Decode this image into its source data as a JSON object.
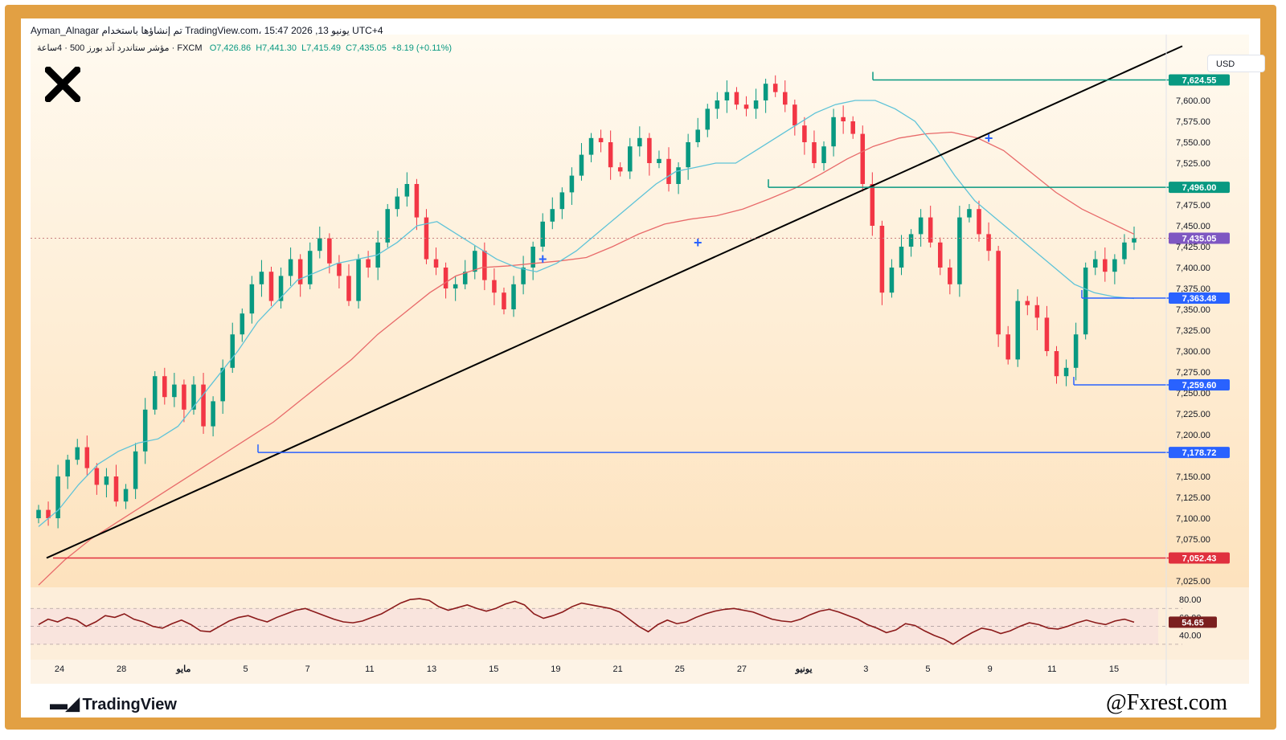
{
  "header": {
    "line1": "Ayman_Alnagar تم إنشاؤها باستخدام TradingView.com، 15:47 2026 ,13 يونيو UTC+4",
    "symbol": "مؤشر ستاندرد آند بورز 500 · 4ساعة · FXCM",
    "open": "O7,426.86",
    "high": "H7,441.30",
    "low": "L7,415.49",
    "close": "C7,435.05",
    "change": "+8.19 (+0.11%)"
  },
  "currency_label": "USD",
  "brand": {
    "tradingview": "TradingView",
    "handle": "@Fxrest.com"
  },
  "colors": {
    "frame": "#e2a043",
    "up": "#089981",
    "down": "#f23645",
    "ema_fast": "#5ec3d8",
    "ema_slow": "#e86a6a",
    "resistance": "#089981",
    "support": "#2962ff",
    "rsi": "#8b1a1a"
  },
  "chart_data": [
    {
      "type": "candlestick",
      "ylim": [
        7025,
        7650
      ],
      "y_ticks": [
        "7,600.00",
        "7,575.00",
        "7,550.00",
        "7,525.00",
        "7,475.00",
        "7,450.00",
        "7,425.00",
        "7,400.00",
        "7,375.00",
        "7,350.00",
        "7,325.00",
        "7,300.00",
        "7,275.00",
        "7,250.00",
        "7,225.00",
        "7,200.00",
        "7,150.00",
        "7,125.00",
        "7,100.00",
        "7,075.00",
        "7,025.00"
      ],
      "x_ticks": [
        "24",
        "28",
        "مايو",
        "5",
        "7",
        "11",
        "13",
        "15",
        "19",
        "21",
        "25",
        "27",
        "يونيو",
        "3",
        "5",
        "9",
        "11",
        "15"
      ],
      "close_path": [
        7110,
        7100,
        7150,
        7170,
        7185,
        7160,
        7140,
        7150,
        7120,
        7135,
        7180,
        7230,
        7270,
        7245,
        7260,
        7230,
        7260,
        7210,
        7240,
        7280,
        7320,
        7345,
        7380,
        7395,
        7360,
        7390,
        7410,
        7380,
        7420,
        7435,
        7405,
        7390,
        7360,
        7410,
        7400,
        7430,
        7470,
        7485,
        7500,
        7460,
        7410,
        7400,
        7375,
        7380,
        7395,
        7420,
        7385,
        7370,
        7350,
        7380,
        7400,
        7425,
        7455,
        7470,
        7490,
        7510,
        7535,
        7555,
        7550,
        7520,
        7515,
        7545,
        7555,
        7525,
        7530,
        7500,
        7520,
        7550,
        7565,
        7590,
        7600,
        7610,
        7595,
        7590,
        7600,
        7620,
        7610,
        7595,
        7570,
        7550,
        7525,
        7545,
        7580,
        7575,
        7560,
        7500,
        7450,
        7370,
        7400,
        7425,
        7440,
        7460,
        7430,
        7400,
        7380,
        7460,
        7470,
        7440,
        7420,
        7320,
        7290,
        7360,
        7355,
        7340,
        7300,
        7270,
        7280,
        7320,
        7400,
        7410,
        7395,
        7410,
        7430,
        7435.05
      ],
      "ema_fast_path": [
        7090,
        7110,
        7140,
        7165,
        7180,
        7190,
        7195,
        7210,
        7240,
        7270,
        7300,
        7335,
        7360,
        7385,
        7395,
        7405,
        7410,
        7415,
        7430,
        7450,
        7455,
        7440,
        7425,
        7410,
        7400,
        7395,
        7405,
        7420,
        7440,
        7460,
        7480,
        7500,
        7515,
        7520,
        7525,
        7525,
        7540,
        7555,
        7570,
        7585,
        7595,
        7600,
        7600,
        7590,
        7575,
        7545,
        7510,
        7480,
        7460,
        7440,
        7420,
        7400,
        7380,
        7370,
        7365,
        7363
      ],
      "ema_slow_path": [
        7020,
        7050,
        7075,
        7095,
        7115,
        7135,
        7155,
        7175,
        7195,
        7215,
        7240,
        7265,
        7290,
        7320,
        7345,
        7370,
        7390,
        7400,
        7402,
        7405,
        7408,
        7412,
        7425,
        7440,
        7452,
        7458,
        7462,
        7470,
        7482,
        7495,
        7512,
        7530,
        7545,
        7555,
        7560,
        7562,
        7555,
        7540,
        7515,
        7490,
        7470,
        7455,
        7440
      ],
      "series": [
        {
          "name": "",
          "note": "EMA fast"
        },
        {
          "name": "",
          "note": "EMA slow"
        }
      ],
      "levels": [
        {
          "label": "7,624.55",
          "value": 7624.55,
          "kind": "resistance"
        },
        {
          "label": "7,496.00",
          "value": 7496.0,
          "kind": "resistance"
        },
        {
          "label": "7,435.05",
          "value": 7435.05,
          "kind": "last"
        },
        {
          "label": "7,363.48",
          "value": 7363.48,
          "kind": "support"
        },
        {
          "label": "7,259.60",
          "value": 7259.6,
          "kind": "support"
        },
        {
          "label": "7,178.72",
          "value": 7178.72,
          "kind": "support"
        },
        {
          "label": "7,052.43",
          "value": 7052.43,
          "kind": "pivot"
        }
      ],
      "trendline": {
        "from": [
          0,
          7052.43
        ],
        "to": [
          1,
          7665
        ]
      },
      "markers": [
        {
          "label": "+",
          "x_index": 52,
          "value": 7410
        },
        {
          "label": "+",
          "x_index": 68,
          "value": 7430
        },
        {
          "label": "+",
          "x_index": 98,
          "value": 7555
        }
      ]
    },
    {
      "type": "line",
      "ylabel": "",
      "ylim": [
        20,
        90
      ],
      "y_ticks": [
        "80.00",
        "60.00",
        "40.00"
      ],
      "current": "54.65",
      "values": [
        52,
        58,
        55,
        60,
        57,
        50,
        55,
        62,
        60,
        64,
        58,
        55,
        50,
        48,
        53,
        57,
        52,
        45,
        44,
        50,
        56,
        60,
        62,
        58,
        55,
        60,
        64,
        68,
        70,
        66,
        62,
        58,
        55,
        54,
        56,
        60,
        64,
        70,
        76,
        80,
        81,
        79,
        72,
        68,
        71,
        74,
        70,
        67,
        70,
        75,
        78,
        74,
        64,
        59,
        62,
        66,
        72,
        76,
        74,
        72,
        70,
        66,
        58,
        50,
        44,
        52,
        57,
        53,
        55,
        60,
        64,
        67,
        69,
        70,
        68,
        66,
        62,
        58,
        56,
        55,
        58,
        63,
        67,
        69,
        66,
        62,
        58,
        52,
        48,
        43,
        46,
        53,
        51,
        45,
        40,
        36,
        30,
        37,
        43,
        48,
        46,
        42,
        45,
        50,
        54,
        52,
        48,
        47,
        50,
        54,
        57,
        54,
        52,
        56,
        58,
        54.65
      ]
    }
  ]
}
